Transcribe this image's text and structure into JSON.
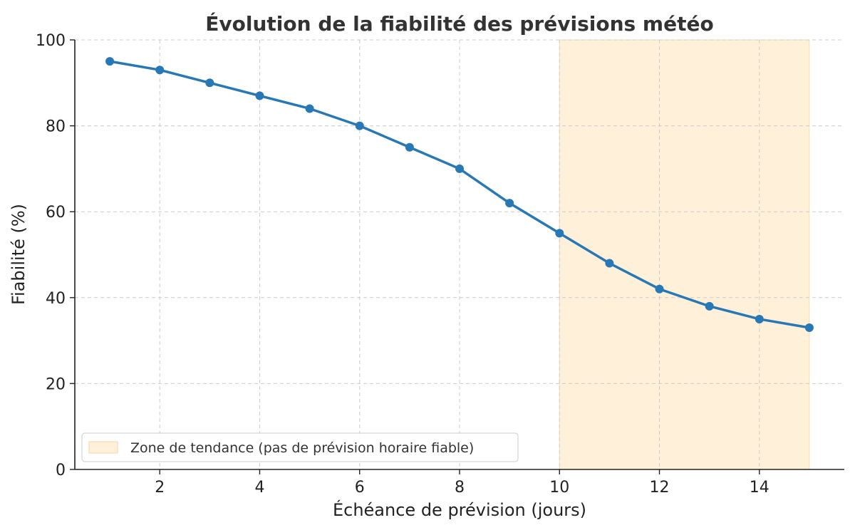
{
  "chart_data": {
    "type": "line",
    "title": "Évolution de la fiabilité des prévisions météo",
    "xlabel": "Échéance de prévision (jours)",
    "ylabel": "Fiabilité (%)",
    "x": [
      1,
      2,
      3,
      4,
      5,
      6,
      7,
      8,
      9,
      10,
      11,
      12,
      13,
      14,
      15
    ],
    "series": [
      {
        "values": [
          95,
          93,
          90,
          87,
          84,
          80,
          75,
          70,
          62,
          55,
          48,
          42,
          38,
          35,
          33
        ],
        "color": "#2878b5"
      }
    ],
    "xlim": [
      0.3,
      15.7
    ],
    "ylim": [
      0,
      100
    ],
    "xticks": [
      2,
      4,
      6,
      8,
      10,
      12,
      14
    ],
    "yticks": [
      0,
      20,
      40,
      60,
      80,
      100
    ],
    "grid": true,
    "shaded_region": {
      "x_start": 10,
      "x_end": 15,
      "label": "Zone de tendance (pas de prévision horaire fiable)",
      "color": "#fff0d9"
    },
    "legend": {
      "position": "lower-left"
    }
  }
}
